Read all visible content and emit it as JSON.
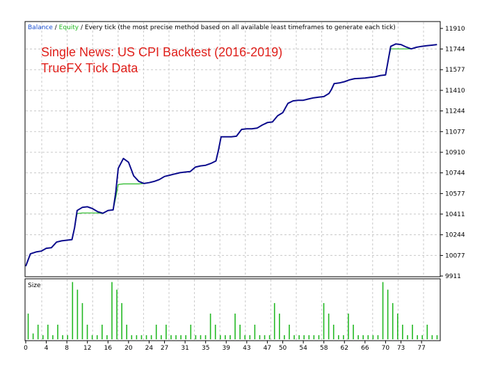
{
  "chart_data": [
    {
      "type": "line",
      "legend": {
        "balance": "Balance",
        "sep1": " / ",
        "equity": "Equity",
        "sep2": " / ",
        "mode": "Every tick (the most precise method based on all available least timeframes to generate each tick)"
      },
      "annotations": [
        "Single News: US CPI Backtest (2016-2019)",
        "TrueFX Tick Data"
      ],
      "ylim": [
        9911,
        11960
      ],
      "yticks": [
        "11910",
        "11744",
        "11577",
        "11410",
        "11244",
        "11077",
        "10910",
        "10744",
        "10577",
        "10411",
        "10244",
        "10077",
        "9911"
      ],
      "xlim": [
        0,
        80.5
      ],
      "grid": true,
      "colors": {
        "balance": "#0a0a8c",
        "equity": "#22b822",
        "grid": "#c8c8c8",
        "annotation": "#e0201b"
      },
      "series": [
        {
          "name": "Balance",
          "x": [
            0,
            0.9,
            2,
            3,
            4,
            5,
            6,
            7,
            8,
            9,
            9.5,
            10,
            11,
            12,
            13,
            14,
            15,
            16,
            17,
            17.5,
            18,
            19,
            20,
            21,
            22,
            23,
            24,
            25,
            26,
            27,
            28,
            29,
            30,
            31,
            32,
            33,
            34,
            35,
            36,
            37,
            37.5,
            38,
            39,
            40,
            41,
            42,
            43,
            44,
            45,
            46,
            47,
            48,
            49,
            50,
            51,
            52,
            53,
            54,
            55,
            56,
            57,
            58,
            59,
            59.5,
            60,
            61,
            62,
            63,
            64,
            65,
            66,
            67,
            68,
            69,
            70,
            70.5,
            71,
            72,
            73,
            74,
            75,
            76,
            77,
            78,
            79,
            80
          ],
          "y": [
            9990,
            10090,
            10105,
            10112,
            10135,
            10140,
            10185,
            10195,
            10200,
            10205,
            10300,
            10415,
            10420,
            10420,
            10420,
            10420,
            10415,
            10440,
            10445,
            10540,
            10650,
            10655,
            10655,
            10655,
            10655,
            10658,
            10665,
            10675,
            10690,
            10715,
            10725,
            10735,
            10745,
            10750,
            10755,
            10790,
            10800,
            10805,
            10820,
            10840,
            10930,
            11035,
            11035,
            11035,
            11040,
            11095,
            11100,
            11100,
            11105,
            11130,
            11150,
            11155,
            11205,
            11230,
            11305,
            11325,
            11330,
            11330,
            11340,
            11350,
            11355,
            11360,
            11385,
            11420,
            11465,
            11470,
            11480,
            11495,
            11505,
            11507,
            11510,
            11515,
            11520,
            11530,
            11535,
            11650,
            11745,
            11745,
            11745,
            11745,
            11745,
            11758,
            11765,
            11770,
            11775,
            11780
          ]
        },
        {
          "name": "Equity",
          "x": [
            0,
            0.9,
            2,
            3,
            4,
            5,
            6,
            7,
            8,
            9,
            9.5,
            10,
            11,
            12,
            13,
            14,
            15,
            16,
            17,
            17.5,
            18,
            19,
            20,
            21,
            22,
            23,
            24,
            25,
            26,
            27,
            28,
            29,
            30,
            31,
            32,
            33,
            34,
            35,
            36,
            37,
            37.5,
            38,
            39,
            40,
            41,
            42,
            43,
            44,
            45,
            46,
            47,
            48,
            49,
            50,
            51,
            52,
            53,
            54,
            55,
            56,
            57,
            58,
            59,
            59.5,
            60,
            61,
            62,
            63,
            64,
            65,
            66,
            67,
            68,
            69,
            70,
            70.5,
            71,
            72,
            73,
            74,
            75,
            76,
            77,
            78,
            79,
            80
          ],
          "y": [
            9990,
            10090,
            10105,
            10112,
            10135,
            10140,
            10185,
            10195,
            10200,
            10205,
            10300,
            10440,
            10465,
            10470,
            10455,
            10430,
            10418,
            10440,
            10445,
            10580,
            10780,
            10860,
            10830,
            10720,
            10675,
            10658,
            10665,
            10675,
            10690,
            10715,
            10725,
            10735,
            10745,
            10750,
            10755,
            10790,
            10800,
            10805,
            10820,
            10840,
            10930,
            11035,
            11035,
            11035,
            11040,
            11095,
            11100,
            11100,
            11105,
            11130,
            11150,
            11155,
            11205,
            11230,
            11305,
            11325,
            11330,
            11330,
            11340,
            11350,
            11355,
            11360,
            11385,
            11420,
            11465,
            11470,
            11480,
            11495,
            11505,
            11507,
            11510,
            11515,
            11520,
            11530,
            11535,
            11650,
            11765,
            11785,
            11780,
            11760,
            11745,
            11758,
            11765,
            11770,
            11775,
            11780
          ]
        }
      ]
    },
    {
      "type": "bar",
      "label": "Size",
      "xlim": [
        0,
        80.5
      ],
      "ylim": [
        0,
        10
      ],
      "xticks": [
        "0",
        "4",
        "8",
        "12",
        "16",
        "20",
        "24",
        "27",
        "31",
        "35",
        "39",
        "43",
        "47",
        "50",
        "54",
        "58",
        "62",
        "66",
        "70",
        "73",
        "77"
      ],
      "xtick_positions": [
        0,
        4,
        8,
        12,
        16,
        20,
        24,
        27,
        31,
        35,
        39,
        43,
        47,
        50,
        54,
        58,
        62,
        66,
        70,
        73,
        77
      ],
      "color": "#22b822",
      "values": [
        4.4,
        1,
        2.5,
        0.7,
        2.5,
        0.7,
        2.5,
        0.7,
        0.7,
        9.8,
        8.5,
        6.2,
        2.5,
        0.7,
        0.7,
        2.5,
        0.7,
        9.8,
        8.5,
        6.2,
        2.5,
        0.7,
        0.7,
        0.7,
        0.7,
        0.7,
        2.5,
        0.7,
        2.5,
        0.7,
        0.7,
        0.7,
        0.7,
        2.5,
        0.7,
        0.7,
        0.7,
        4.4,
        2.5,
        0.7,
        0.7,
        0.7,
        4.4,
        2.5,
        0.7,
        0.7,
        2.5,
        0.7,
        0.7,
        0.7,
        6.2,
        4.4,
        0.7,
        2.5,
        0.7,
        0.7,
        0.7,
        0.7,
        0.7,
        0.7,
        6.2,
        4.4,
        2.5,
        0.7,
        0.7,
        4.4,
        2.5,
        0.7,
        0.7,
        0.7,
        0.7,
        0.7,
        9.8,
        8.5,
        6.2,
        4.4,
        2.5,
        0.7,
        2.5,
        0.7,
        0.7,
        2.5,
        0.7,
        0.7
      ]
    }
  ]
}
